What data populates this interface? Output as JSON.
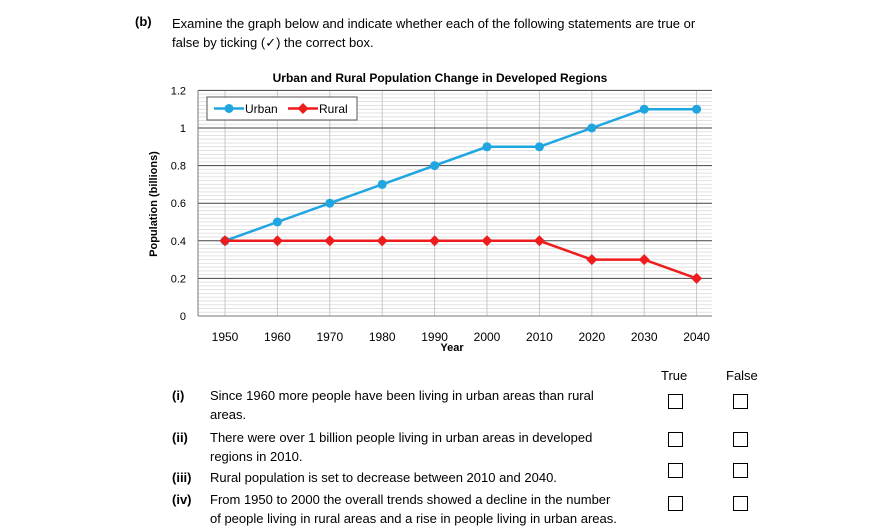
{
  "question": {
    "label": "(b)",
    "line1": "Examine the graph below and indicate whether each of the following statements are true or",
    "line2": "false by ticking (✓) the correct box."
  },
  "chart_data": {
    "type": "line",
    "title": "Urban and Rural Population Change in Developed Regions",
    "xlabel": "Year",
    "ylabel": "Population (billions)",
    "categories": [
      "1950",
      "1960",
      "1970",
      "1980",
      "1990",
      "2000",
      "2010",
      "2020",
      "2030",
      "2040"
    ],
    "yticks": [
      "0",
      "0.2",
      "0.4",
      "0.6",
      "0.8",
      "1",
      "1.2"
    ],
    "ylim": [
      0,
      1.2
    ],
    "grid": true,
    "legend": "top-left",
    "series": [
      {
        "name": "Urban",
        "color": "#1fa6e0",
        "marker": "circle",
        "values": [
          0.4,
          0.5,
          0.6,
          0.7,
          0.8,
          0.9,
          0.9,
          1.0,
          1.1,
          1.1
        ]
      },
      {
        "name": "Rural",
        "color": "#ee1c1c",
        "marker": "diamond",
        "values": [
          0.4,
          0.4,
          0.4,
          0.4,
          0.4,
          0.4,
          0.4,
          0.3,
          0.3,
          0.2
        ]
      }
    ]
  },
  "headers": {
    "true_label": "True",
    "false_label": "False"
  },
  "statements": [
    {
      "num": "(i)",
      "line1": "Since 1960 more people have been living in urban areas than rural",
      "line2": "areas."
    },
    {
      "num": "(ii)",
      "line1": "There were over 1 billion people living in urban areas in developed",
      "line2": "regions in 2010."
    },
    {
      "num": "(iii)",
      "line1": "Rural population is set to decrease between 2010 and 2040.",
      "line2": ""
    },
    {
      "num": "(iv)",
      "line1": "From 1950 to 2000 the overall trends showed a decline in the number",
      "line2": "of people living in rural areas and a rise in people living in urban areas."
    }
  ]
}
